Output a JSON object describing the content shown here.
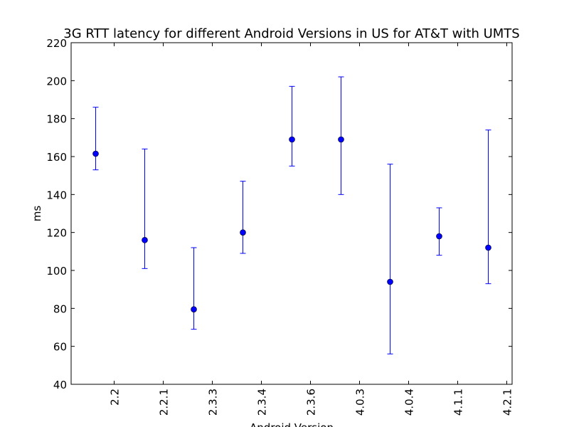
{
  "chart_data": {
    "type": "scatter",
    "title": "3G RTT latency for different Android Versions in US for AT&T with UMTS",
    "xlabel": "Android Version",
    "ylabel": "ms",
    "ylim": [
      40,
      220
    ],
    "yticks": [
      40,
      60,
      80,
      100,
      120,
      140,
      160,
      180,
      200,
      220
    ],
    "grid": false,
    "categories": [
      "2.2",
      "2.2.1",
      "2.3.3",
      "2.3.4",
      "2.3.6",
      "4.0.3",
      "4.0.4",
      "4.1.1",
      "4.2.1"
    ],
    "series": [
      {
        "values": [
          161.5,
          116,
          79.5,
          120,
          169,
          169,
          94,
          118,
          112
        ],
        "lower": [
          153,
          101,
          69,
          109,
          155,
          140,
          56,
          108,
          93
        ],
        "upper": [
          186,
          164,
          112,
          147,
          197,
          202,
          156,
          133,
          174
        ]
      }
    ],
    "colors": {
      "series": "#0000ff",
      "axes": "#000000"
    }
  }
}
